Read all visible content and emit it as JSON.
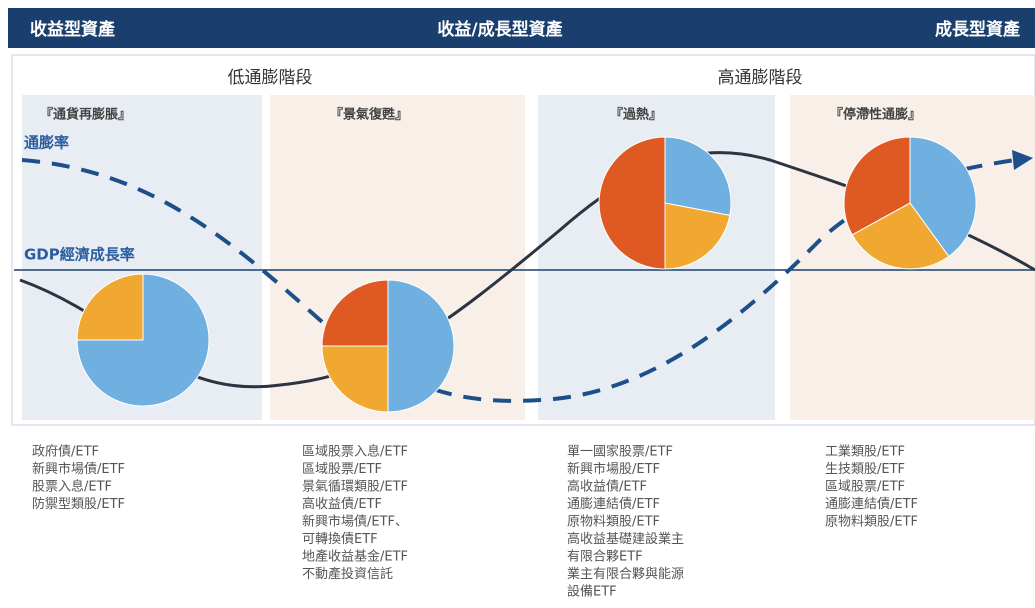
{
  "header": [
    "收益型資產",
    "收益/成長型資產",
    "成長型資產"
  ],
  "phases": [
    "低通膨階段",
    "高通膨階段"
  ],
  "columns": [
    "『通貨再膨脹』",
    "『景氣復甦』",
    "『過熱』",
    "『停滯性通膨』"
  ],
  "curve_labels": {
    "inflation": "通膨率",
    "gdp": "GDP經濟成長率"
  },
  "pie_colors": [
    "#6fb0e0",
    "#f0a830",
    "#df5a22"
  ],
  "pies": [
    [
      75,
      25
    ],
    [
      50,
      25,
      25
    ],
    [
      28,
      22,
      50
    ],
    [
      40,
      27,
      33
    ]
  ],
  "lists": [
    [
      "政府債/ETF",
      "新興市場債/ETF",
      "股票入息/ETF",
      "防禦型類股/ETF"
    ],
    [
      "區域股票入息/ETF",
      "區域股票/ETF",
      "景氣循環類股/ETF",
      "高收益債/ETF",
      "新興市場債/ETF、",
      "可轉換債ETF",
      "地產收益基金/ETF",
      "不動產投資信託"
    ],
    [
      "單一國家股票/ETF",
      "新興市場股/ETF",
      "高收益債/ETF",
      "通膨連結債/ETF",
      "原物料類股/ETF",
      "高收益基礎建設業主",
      "有限合夥ETF",
      "業主有限合夥與能源",
      "設備ETF"
    ],
    [
      "工業類股/ETF",
      "生技類股/ETF",
      "區域股票/ETF",
      "通膨連結債/ETF",
      "原物料類股/ETF"
    ]
  ]
}
